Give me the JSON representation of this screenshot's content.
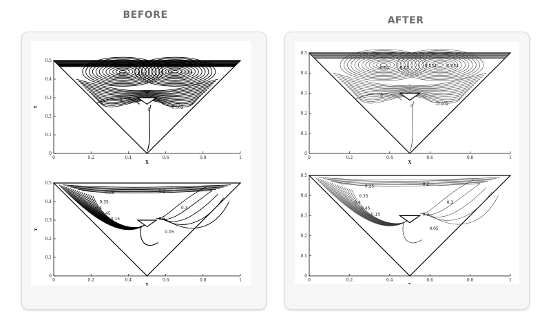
{
  "headings": {
    "before": "BEFORE",
    "after": "AFTER"
  },
  "axes": {
    "xlabel": "X",
    "ylabel": "Y",
    "x_ticks": [
      "0",
      "0.2",
      "0.4",
      "0.6",
      "0.8",
      "1"
    ],
    "y_ticks": [
      "0",
      "0.1",
      "0.2",
      "0.3",
      "0.4",
      "0.5"
    ]
  },
  "plots": {
    "stream": {
      "labels": [
        "-0.03",
        "-0.03",
        "-0.034",
        "-0.034",
        "0",
        "0",
        "-0.002"
      ]
    },
    "thermal": {
      "labels": [
        "0.25",
        "0.2",
        "0.3",
        "0.35",
        "0.4",
        "0.45",
        "0.15",
        "0.1",
        "0.05"
      ]
    }
  }
}
